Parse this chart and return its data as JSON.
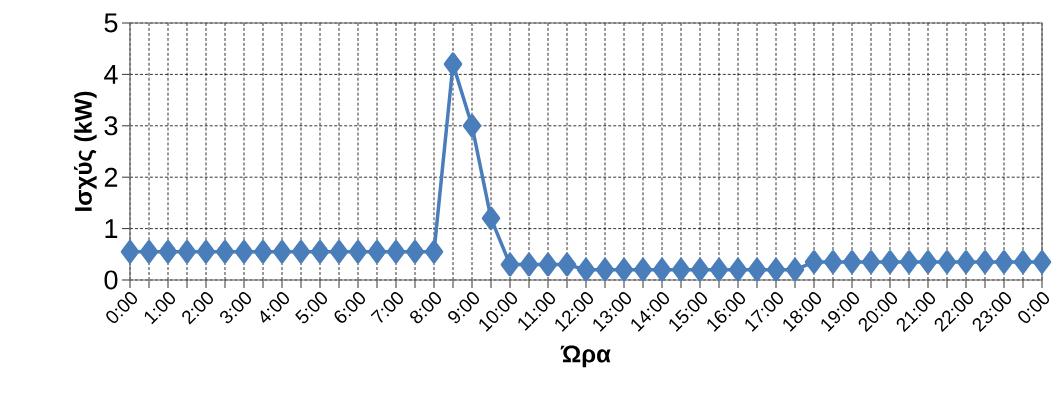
{
  "chart_data": {
    "type": "line",
    "xlabel": "Ώρα",
    "ylabel": "Ισχύς (kW)",
    "x": [
      0,
      0.5,
      1,
      1.5,
      2,
      2.5,
      3,
      3.5,
      4,
      4.5,
      5,
      5.5,
      6,
      6.5,
      7,
      7.5,
      8,
      8.5,
      9,
      9.5,
      10,
      10.5,
      11,
      11.5,
      12,
      12.5,
      13,
      13.5,
      14,
      14.5,
      15,
      15.5,
      16,
      16.5,
      17,
      17.5,
      18,
      18.5,
      19,
      19.5,
      20,
      20.5,
      21,
      21.5,
      22,
      22.5,
      23,
      23.5,
      24
    ],
    "values": [
      0.55,
      0.55,
      0.55,
      0.55,
      0.55,
      0.55,
      0.55,
      0.55,
      0.55,
      0.55,
      0.55,
      0.55,
      0.55,
      0.55,
      0.55,
      0.55,
      0.55,
      4.2,
      3.0,
      1.2,
      0.3,
      0.3,
      0.3,
      0.3,
      0.2,
      0.2,
      0.2,
      0.2,
      0.2,
      0.2,
      0.2,
      0.2,
      0.2,
      0.2,
      0.2,
      0.2,
      0.35,
      0.35,
      0.35,
      0.35,
      0.35,
      0.35,
      0.35,
      0.35,
      0.35,
      0.35,
      0.35,
      0.35,
      0.35
    ],
    "color": "#4a7ebb",
    "marker": "diamond",
    "line_style": "solid",
    "grid": true,
    "xlim": [
      0,
      24
    ],
    "ylim": [
      0,
      5
    ],
    "xticks": [
      {
        "value": 0,
        "label": "0:00"
      },
      {
        "value": 0.5,
        "label": null
      },
      {
        "value": 1,
        "label": "1:00"
      },
      {
        "value": 1.5,
        "label": null
      },
      {
        "value": 2,
        "label": "2:00"
      },
      {
        "value": 2.5,
        "label": null
      },
      {
        "value": 3,
        "label": "3:00"
      },
      {
        "value": 3.5,
        "label": null
      },
      {
        "value": 4,
        "label": "4:00"
      },
      {
        "value": 4.5,
        "label": null
      },
      {
        "value": 5,
        "label": "5:00"
      },
      {
        "value": 5.5,
        "label": null
      },
      {
        "value": 6,
        "label": "6:00"
      },
      {
        "value": 6.5,
        "label": null
      },
      {
        "value": 7,
        "label": "7:00"
      },
      {
        "value": 7.5,
        "label": null
      },
      {
        "value": 8,
        "label": "8:00"
      },
      {
        "value": 8.5,
        "label": null
      },
      {
        "value": 9,
        "label": "9:00"
      },
      {
        "value": 9.5,
        "label": null
      },
      {
        "value": 10,
        "label": "10:00"
      },
      {
        "value": 10.5,
        "label": null
      },
      {
        "value": 11,
        "label": "11:00"
      },
      {
        "value": 11.5,
        "label": null
      },
      {
        "value": 12,
        "label": "12:00"
      },
      {
        "value": 12.5,
        "label": null
      },
      {
        "value": 13,
        "label": "13:00"
      },
      {
        "value": 13.5,
        "label": null
      },
      {
        "value": 14,
        "label": "14:00"
      },
      {
        "value": 14.5,
        "label": null
      },
      {
        "value": 15,
        "label": "15:00"
      },
      {
        "value": 15.5,
        "label": null
      },
      {
        "value": 16,
        "label": "16:00"
      },
      {
        "value": 16.5,
        "label": null
      },
      {
        "value": 17,
        "label": "17:00"
      },
      {
        "value": 17.5,
        "label": null
      },
      {
        "value": 18,
        "label": "18:00"
      },
      {
        "value": 18.5,
        "label": null
      },
      {
        "value": 19,
        "label": "19:00"
      },
      {
        "value": 19.5,
        "label": null
      },
      {
        "value": 20,
        "label": "20:00"
      },
      {
        "value": 20.5,
        "label": null
      },
      {
        "value": 21,
        "label": "21:00"
      },
      {
        "value": 21.5,
        "label": null
      },
      {
        "value": 22,
        "label": "22:00"
      },
      {
        "value": 22.5,
        "label": null
      },
      {
        "value": 23,
        "label": "23:00"
      },
      {
        "value": 23.5,
        "label": null
      },
      {
        "value": 24,
        "label": "0:00"
      }
    ],
    "yticks": [
      0,
      1,
      2,
      3,
      4,
      5
    ]
  }
}
